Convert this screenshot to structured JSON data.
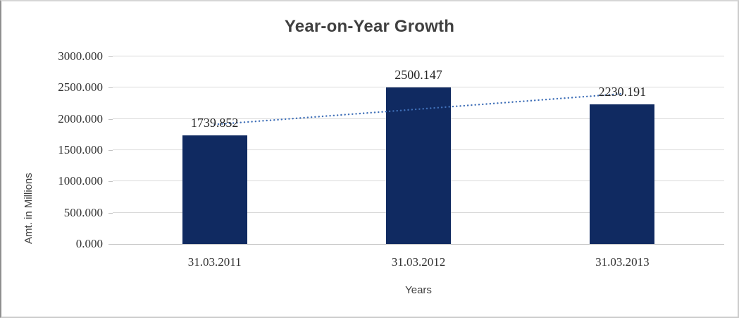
{
  "chart_data": {
    "type": "bar",
    "title": "Year-on-Year Growth",
    "categories": [
      "31.03.2011",
      "31.03.2012",
      "31.03.2013"
    ],
    "values": [
      1739.852,
      2500.147,
      2230.191
    ],
    "data_labels": [
      "1739.852",
      "2500.147",
      "2230.191"
    ],
    "xlabel": "Years",
    "ylabel": "Amt. in Millions",
    "ylim": [
      0,
      3000
    ],
    "ytick_step": 500,
    "ytick_labels": [
      "0.000",
      "500.000",
      "1000.000",
      "1500.000",
      "2000.000",
      "2500.000",
      "3000.000"
    ],
    "grid": true,
    "legend": "none",
    "trendline": {
      "type": "linear",
      "style": "dotted"
    },
    "colors": {
      "bar": "#102a61",
      "trendline": "#4070b8",
      "gridline": "#d9d9d9",
      "axis_line": "#c3c3c3",
      "title_text": "#404040",
      "label_text": "#262626"
    }
  }
}
